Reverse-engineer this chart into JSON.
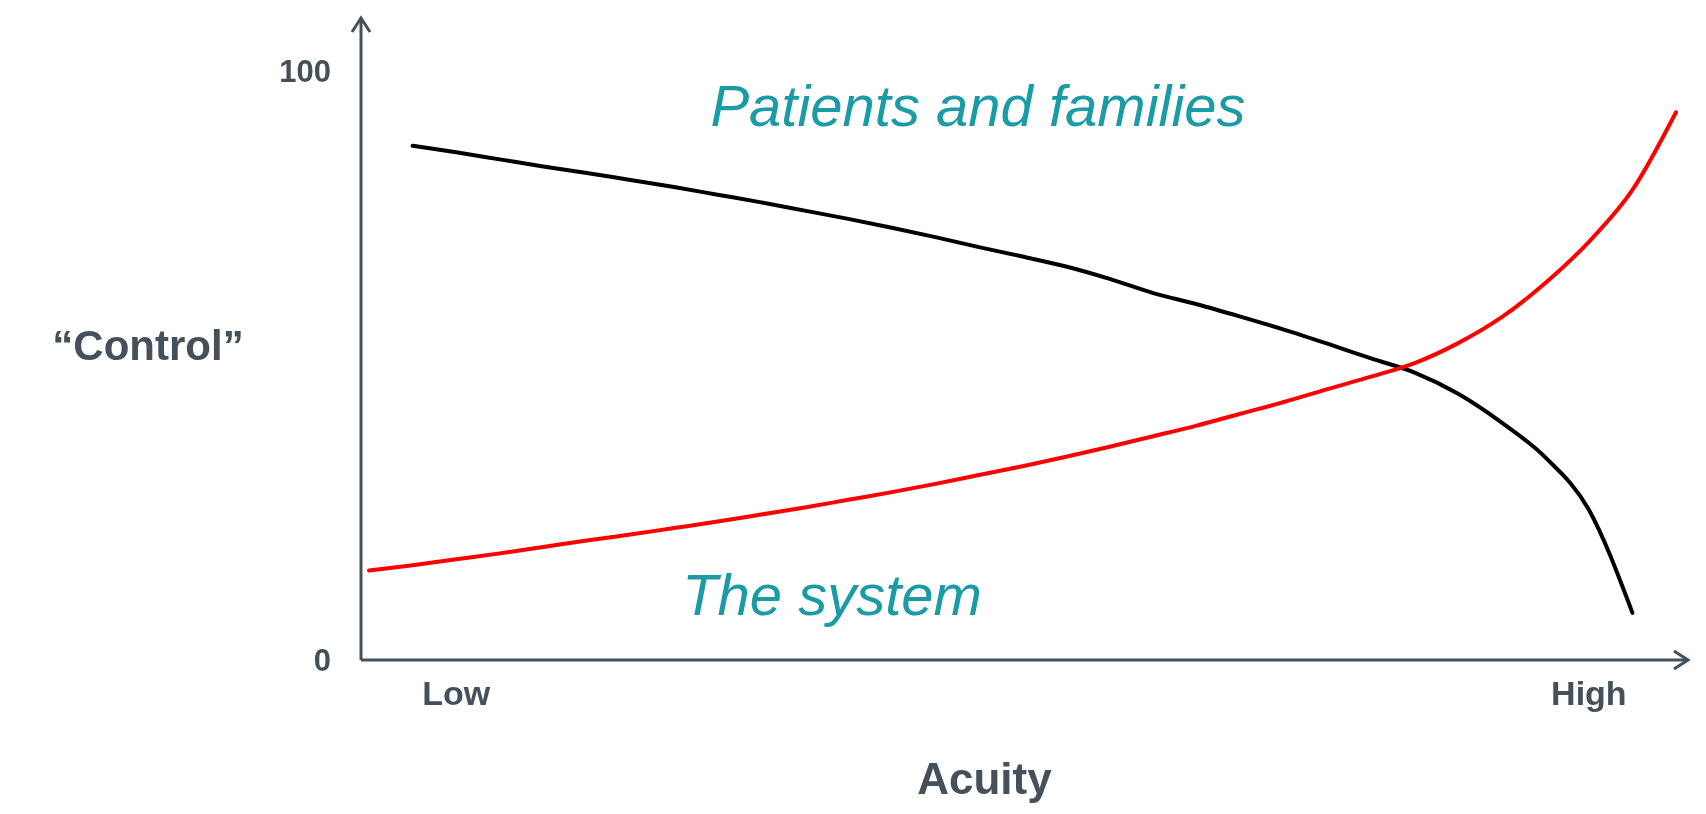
{
  "chart_data": {
    "type": "line",
    "xlabel": "Acuity",
    "ylabel": "“Control”",
    "categories": [
      null,
      null,
      "Low",
      null,
      null,
      null,
      null,
      null,
      null,
      null,
      null,
      null,
      null,
      null,
      null,
      null,
      null,
      null,
      null,
      null,
      null,
      null,
      null,
      null,
      null,
      null,
      null,
      null,
      "High",
      null,
      null
    ],
    "ylim": [
      0,
      109
    ],
    "yticks": [
      0,
      100
    ],
    "grid": false,
    "marker": "none",
    "line_style": "solid",
    "series": [
      {
        "name": "Patients and families",
        "color": "#000000",
        "values": [
          null,
          87.3,
          86.2,
          85.0,
          83.8,
          82.7,
          81.5,
          80.3,
          79.0,
          77.7,
          76.3,
          74.9,
          73.4,
          71.8,
          70.1,
          68.5,
          66.8,
          64.7,
          62.3,
          60.4,
          58.3,
          56.1,
          53.7,
          51.2,
          48.8,
          45.2,
          40.3,
          34.4,
          25.5,
          8.0,
          null
        ]
      },
      {
        "name": "The system",
        "color": "#ff0000",
        "values": [
          15.2,
          16.1,
          17.1,
          18.1,
          19.2,
          20.3,
          21.3,
          22.4,
          23.5,
          24.7,
          25.9,
          27.2,
          28.5,
          29.9,
          31.4,
          32.9,
          34.5,
          36.2,
          38.0,
          39.8,
          41.8,
          43.8,
          46.0,
          48.1,
          50.4,
          53.8,
          58.2,
          64.0,
          71.0,
          79.8,
          93.0
        ]
      }
    ]
  }
}
